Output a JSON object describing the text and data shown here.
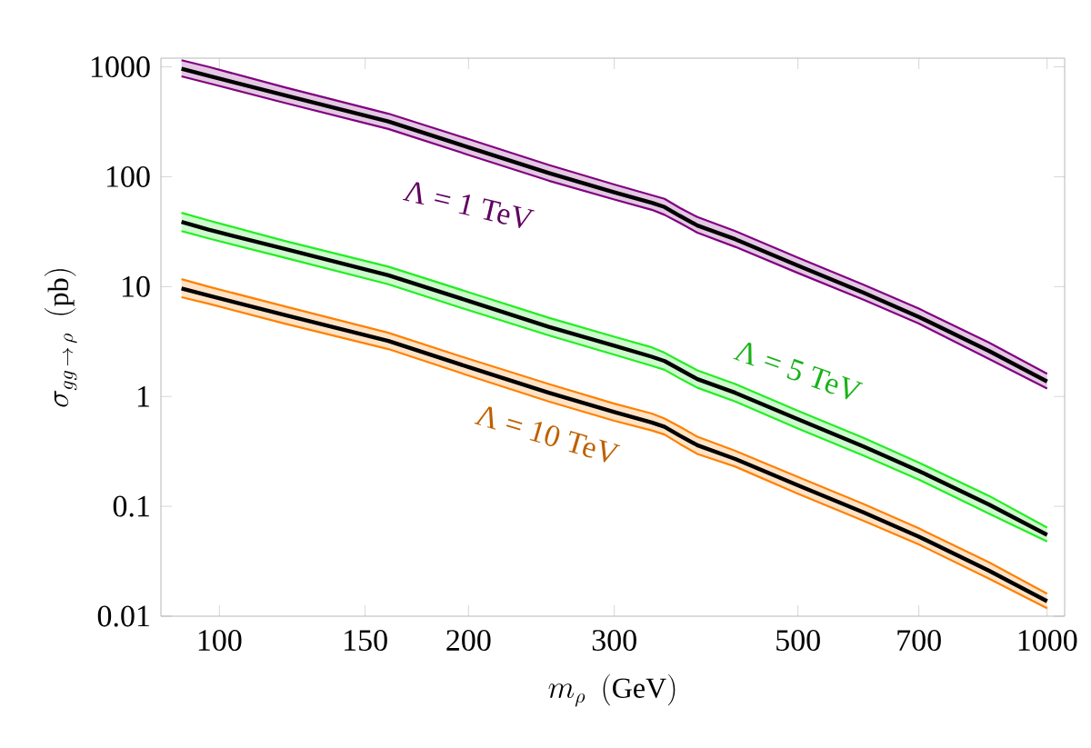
{
  "chart_data": {
    "type": "line",
    "xlabel": "m_\\rho\\ \\ (\\mathrm{GeV})",
    "ylabel": "\\sigma_{gg\\,\\to\\,\\rho}\\ \\ (\\mathrm{pb})",
    "log": "xy",
    "grid": false,
    "xlim": [
      85,
      1050
    ],
    "ylim": [
      0.01,
      1200
    ],
    "xticks": [
      100,
      150,
      200,
      300,
      500,
      700,
      1000
    ],
    "yticks": [
      0.01,
      0.1,
      1,
      10,
      100,
      1000
    ],
    "x": [
      90,
      97,
      120,
      160,
      200,
      250,
      300,
      333,
      345,
      360,
      378,
      420,
      500,
      600,
      700,
      850,
      1000
    ],
    "series": [
      {
        "color": "#800080",
        "values": [
          1150,
          1000,
          650,
          375,
          220,
          128,
          85,
          68,
          63,
          52,
          43,
          32,
          18.3,
          10.4,
          6.3,
          3.1,
          1.61
        ]
      },
      {
        "color": "#800080",
        "values": [
          820,
          710,
          470,
          272,
          158,
          92,
          62,
          50,
          45,
          38,
          31,
          23,
          13.3,
          7.6,
          4.6,
          2.2,
          1.18
        ]
      },
      {
        "name": "Λ = 1 TeV",
        "color": "#000000",
        "values": [
          960,
          830,
          550,
          318,
          185,
          108,
          72,
          58,
          53,
          44,
          36,
          27,
          15.5,
          8.8,
          5.3,
          2.6,
          1.37
        ],
        "upper": [
          1150,
          1000,
          650,
          375,
          220,
          128,
          85,
          68,
          63,
          52,
          43,
          32,
          18.3,
          10.4,
          6.3,
          3.1,
          1.61
        ],
        "lower": [
          820,
          710,
          470,
          272,
          158,
          92,
          62,
          50,
          45,
          38,
          31,
          23,
          13.3,
          7.6,
          4.6,
          2.2,
          1.18
        ]
      },
      {
        "color": "#22ee22",
        "values": [
          47,
          40,
          26,
          15.2,
          8.9,
          5.2,
          3.5,
          2.8,
          2.5,
          2.1,
          1.73,
          1.3,
          0.74,
          0.42,
          0.25,
          0.125,
          0.064
        ]
      },
      {
        "color": "#22ee22",
        "values": [
          32,
          27.5,
          18.3,
          10.5,
          6.1,
          3.6,
          2.4,
          1.9,
          1.75,
          1.46,
          1.2,
          0.9,
          0.51,
          0.29,
          0.175,
          0.086,
          0.048
        ]
      },
      {
        "name": "Λ = 5 TeV",
        "color": "#000000",
        "values": [
          38.8,
          33,
          22,
          12.7,
          7.4,
          4.3,
          2.9,
          2.3,
          2.1,
          1.76,
          1.44,
          1.08,
          0.62,
          0.35,
          0.21,
          0.104,
          0.055
        ],
        "upper": [
          47,
          40,
          26,
          15.2,
          8.9,
          5.2,
          3.5,
          2.8,
          2.5,
          2.1,
          1.73,
          1.3,
          0.74,
          0.42,
          0.25,
          0.125,
          0.064
        ],
        "lower": [
          32,
          27.5,
          18.3,
          10.5,
          6.1,
          3.6,
          2.4,
          1.9,
          1.75,
          1.46,
          1.2,
          0.9,
          0.51,
          0.29,
          0.175,
          0.086,
          0.048
        ]
      },
      {
        "color": "#ff8000",
        "values": [
          11.7,
          10,
          6.6,
          3.8,
          2.2,
          1.3,
          0.86,
          0.7,
          0.63,
          0.53,
          0.43,
          0.32,
          0.185,
          0.105,
          0.063,
          0.031,
          0.016
        ]
      },
      {
        "color": "#ff8000",
        "values": [
          8.0,
          7.0,
          4.6,
          2.7,
          1.55,
          0.9,
          0.6,
          0.49,
          0.45,
          0.37,
          0.3,
          0.23,
          0.13,
          0.074,
          0.045,
          0.022,
          0.0118
        ]
      },
      {
        "name": "Λ = 10 TeV",
        "color": "#000000",
        "values": [
          9.6,
          8.3,
          5.5,
          3.2,
          1.85,
          1.08,
          0.72,
          0.58,
          0.53,
          0.44,
          0.36,
          0.27,
          0.155,
          0.088,
          0.053,
          0.026,
          0.0137
        ],
        "upper": [
          11.7,
          10,
          6.6,
          3.8,
          2.2,
          1.3,
          0.86,
          0.7,
          0.63,
          0.53,
          0.43,
          0.32,
          0.185,
          0.105,
          0.063,
          0.031,
          0.016
        ],
        "lower": [
          8.0,
          7.0,
          4.6,
          2.7,
          1.55,
          0.9,
          0.6,
          0.49,
          0.45,
          0.37,
          0.3,
          0.23,
          0.13,
          0.074,
          0.045,
          0.022,
          0.0118
        ]
      }
    ]
  }
}
